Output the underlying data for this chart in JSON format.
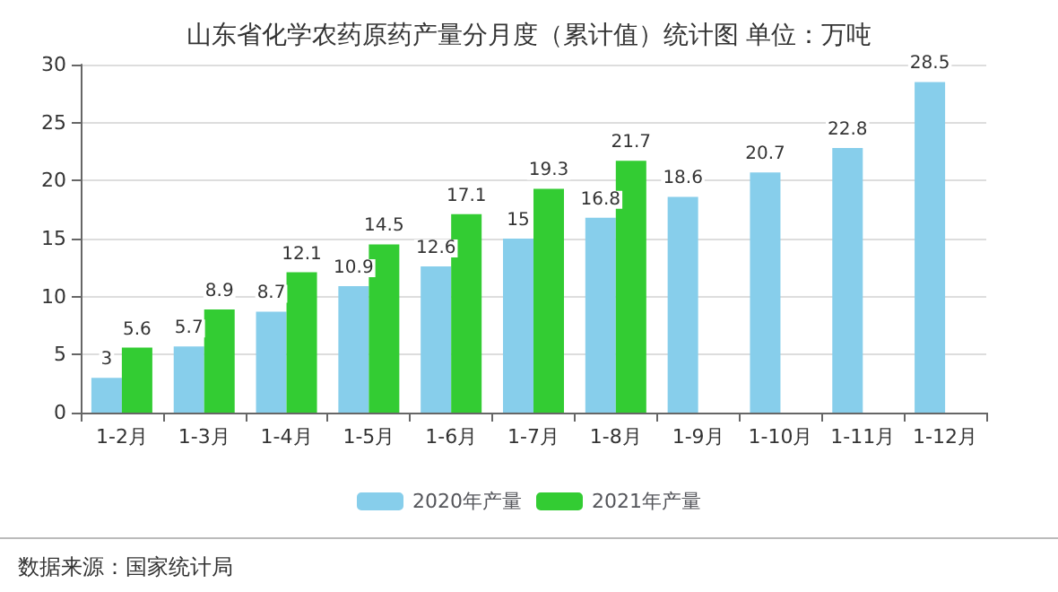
{
  "chart_data": {
    "type": "bar",
    "title": "山东省化学农药原药产量分月度（累计值）统计图 单位：万吨",
    "categories": [
      "1-2月",
      "1-3月",
      "1-4月",
      "1-5月",
      "1-6月",
      "1-7月",
      "1-8月",
      "1-9月",
      "1-10月",
      "1-11月",
      "1-12月"
    ],
    "series": [
      {
        "name": "2020年产量",
        "color": "#87ceeb",
        "values": [
          3,
          5.7,
          8.7,
          10.9,
          12.6,
          15,
          16.8,
          18.6,
          20.7,
          22.8,
          28.5
        ]
      },
      {
        "name": "2021年产量",
        "color": "#33cc33",
        "values": [
          5.6,
          8.9,
          12.1,
          14.5,
          17.1,
          19.3,
          21.7,
          null,
          null,
          null,
          null
        ]
      }
    ],
    "ylim": [
      0,
      30
    ],
    "yticks": [
      0,
      5,
      10,
      15,
      20,
      25,
      30
    ],
    "grid": "y",
    "legend": "bottom",
    "data_labels": true,
    "annotations": [
      "数据来源：国家统计局"
    ]
  }
}
